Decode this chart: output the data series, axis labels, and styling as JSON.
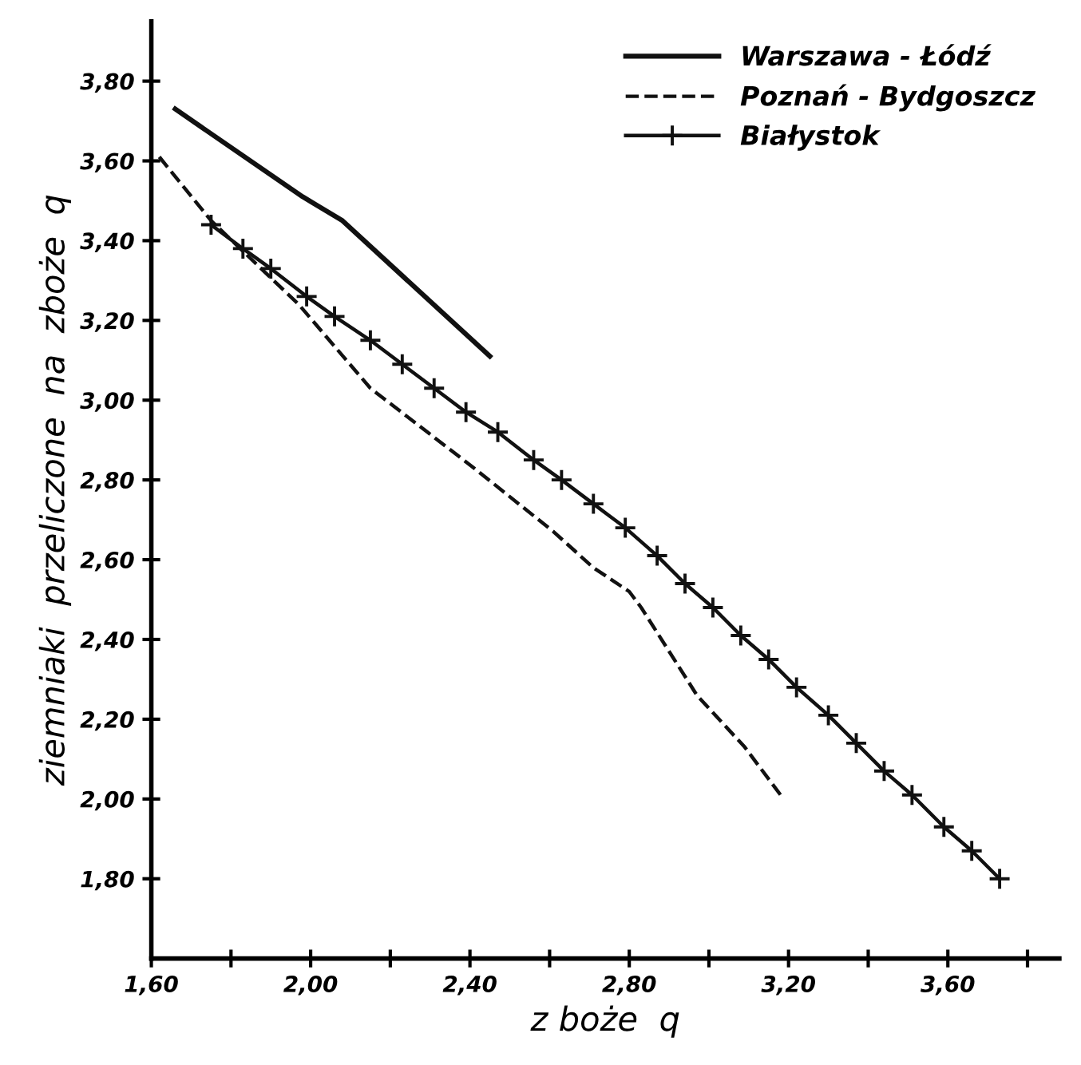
{
  "chart_data": {
    "type": "line",
    "xlabel": "z boże  q",
    "ylabel": "ziemniaki  przeliczone  na  zboże  q",
    "series": [
      {
        "name": "Warszawa - Łódź",
        "color": "#111111",
        "line_style": "solid",
        "marker": "none",
        "x": [
          1.66,
          1.98,
          2.08,
          2.45
        ],
        "values": [
          3.73,
          3.51,
          3.45,
          3.11
        ]
      },
      {
        "name": "Poznań - Bydgoszcz",
        "color": "#111111",
        "line_style": "dashed",
        "marker": "none",
        "x": [
          1.62,
          1.75,
          1.97,
          2.15,
          2.41,
          2.61,
          2.71,
          2.8,
          2.83,
          2.97,
          3.09,
          3.18
        ],
        "values": [
          3.61,
          3.45,
          3.24,
          3.03,
          2.83,
          2.67,
          2.58,
          2.52,
          2.48,
          2.26,
          2.13,
          2.01
        ]
      },
      {
        "name": "Białystok",
        "color": "#111111",
        "line_style": "solid",
        "marker": "cross",
        "x": [
          1.75,
          1.83,
          1.9,
          1.99,
          2.06,
          2.15,
          2.23,
          2.31,
          2.39,
          2.47,
          2.56,
          2.63,
          2.71,
          2.79,
          2.87,
          2.94,
          3.01,
          3.08,
          3.15,
          3.22,
          3.3,
          3.37,
          3.44,
          3.51,
          3.59,
          3.66,
          3.73
        ],
        "values": [
          3.44,
          3.38,
          3.33,
          3.26,
          3.21,
          3.15,
          3.09,
          3.03,
          2.97,
          2.92,
          2.85,
          2.8,
          2.74,
          2.68,
          2.61,
          2.54,
          2.48,
          2.41,
          2.35,
          2.28,
          2.21,
          2.14,
          2.07,
          2.01,
          1.93,
          1.87,
          1.8
        ]
      }
    ],
    "xlim": [
      1.6,
      3.88
    ],
    "ylim": [
      1.6,
      3.95
    ],
    "xticks": [
      {
        "value": 1.6,
        "label": "1,60"
      },
      {
        "value": 1.8,
        "label": null
      },
      {
        "value": 2.0,
        "label": "2,00"
      },
      {
        "value": 2.2,
        "label": null
      },
      {
        "value": 2.4,
        "label": "2,40"
      },
      {
        "value": 2.6,
        "label": null
      },
      {
        "value": 2.8,
        "label": "2,80"
      },
      {
        "value": 3.0,
        "label": null
      },
      {
        "value": 3.2,
        "label": "3,20"
      },
      {
        "value": 3.4,
        "label": null
      },
      {
        "value": 3.6,
        "label": "3,60"
      },
      {
        "value": 3.8,
        "label": null
      }
    ],
    "yticks": [
      {
        "value": 1.8,
        "label": "1,80"
      },
      {
        "value": 2.0,
        "label": "2,00"
      },
      {
        "value": 2.2,
        "label": "2,20"
      },
      {
        "value": 2.4,
        "label": "2,40"
      },
      {
        "value": 2.6,
        "label": "2,60"
      },
      {
        "value": 2.8,
        "label": "2,80"
      },
      {
        "value": 3.0,
        "label": "3,00"
      },
      {
        "value": 3.2,
        "label": "3,20"
      },
      {
        "value": 3.4,
        "label": "3,40"
      },
      {
        "value": 3.6,
        "label": "3,60"
      },
      {
        "value": 3.8,
        "label": "3,80"
      }
    ],
    "grid": false,
    "legend": "top right"
  }
}
